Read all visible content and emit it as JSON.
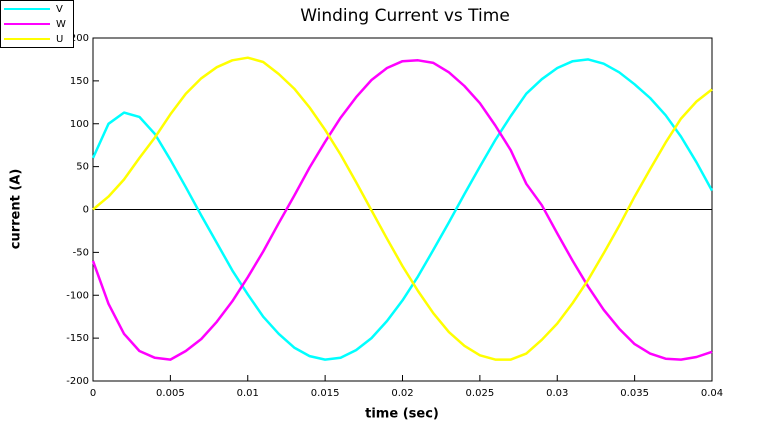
{
  "chart_data": {
    "type": "line",
    "title": "Winding Current vs Time",
    "x_label": "time (sec)",
    "y_label": "current (A)",
    "x": [
      0,
      0.001,
      0.002,
      0.003,
      0.004,
      0.005,
      0.006,
      0.007,
      0.008,
      0.009,
      0.01,
      0.011,
      0.012,
      0.013,
      0.014,
      0.015,
      0.016,
      0.017,
      0.018,
      0.019,
      0.02,
      0.021,
      0.022,
      0.023,
      0.024,
      0.025,
      0.026,
      0.027,
      0.028,
      0.029,
      0.03,
      0.031,
      0.032,
      0.033,
      0.034,
      0.035,
      0.036,
      0.037,
      0.038,
      0.039,
      0.04
    ],
    "series": [
      {
        "name": "V",
        "color": "#00ffff",
        "values": [
          60,
          100,
          113,
          108,
          88,
          58,
          26,
          -7,
          -39,
          -71,
          -99,
          -125,
          -145,
          -161,
          -171,
          -175,
          -173,
          -164,
          -150,
          -130,
          -106,
          -78,
          -47,
          -15,
          18,
          50,
          81,
          109,
          135,
          152,
          165,
          173,
          175,
          170,
          160,
          146,
          130,
          110,
          85,
          55,
          22
        ]
      },
      {
        "name": "W",
        "color": "#ff00ff",
        "values": [
          -60,
          -110,
          -145,
          -165,
          -173,
          -175,
          -165,
          -151,
          -131,
          -107,
          -79,
          -49,
          -16,
          16,
          49,
          79,
          107,
          131,
          151,
          165,
          173,
          174,
          171,
          160,
          144,
          124,
          98,
          69,
          30,
          5,
          -28,
          -60,
          -90,
          -117,
          -139,
          -157,
          -168,
          -174,
          -175,
          -172,
          -166
        ]
      },
      {
        "name": "U",
        "color": "#ffff00",
        "values": [
          0,
          15,
          35,
          60,
          84,
          111,
          135,
          153,
          166,
          174,
          177,
          172,
          158,
          141,
          119,
          93,
          64,
          32,
          -1,
          -34,
          -66,
          -95,
          -121,
          -143,
          -159,
          -170,
          -175,
          -175,
          -168,
          -152,
          -133,
          -109,
          -82,
          -51,
          -19,
          15,
          47,
          78,
          106,
          126,
          140
        ]
      }
    ],
    "xlim": [
      0,
      0.04
    ],
    "xticks": [
      0,
      0.005,
      0.01,
      0.015,
      0.02,
      0.025,
      0.03,
      0.035,
      0.04
    ],
    "ylim": [
      -200,
      200
    ],
    "yticks": [
      -200,
      -150,
      -100,
      -50,
      0,
      50,
      100,
      150,
      200
    ],
    "zero_line": true,
    "legend": "top-left",
    "grid": false
  }
}
